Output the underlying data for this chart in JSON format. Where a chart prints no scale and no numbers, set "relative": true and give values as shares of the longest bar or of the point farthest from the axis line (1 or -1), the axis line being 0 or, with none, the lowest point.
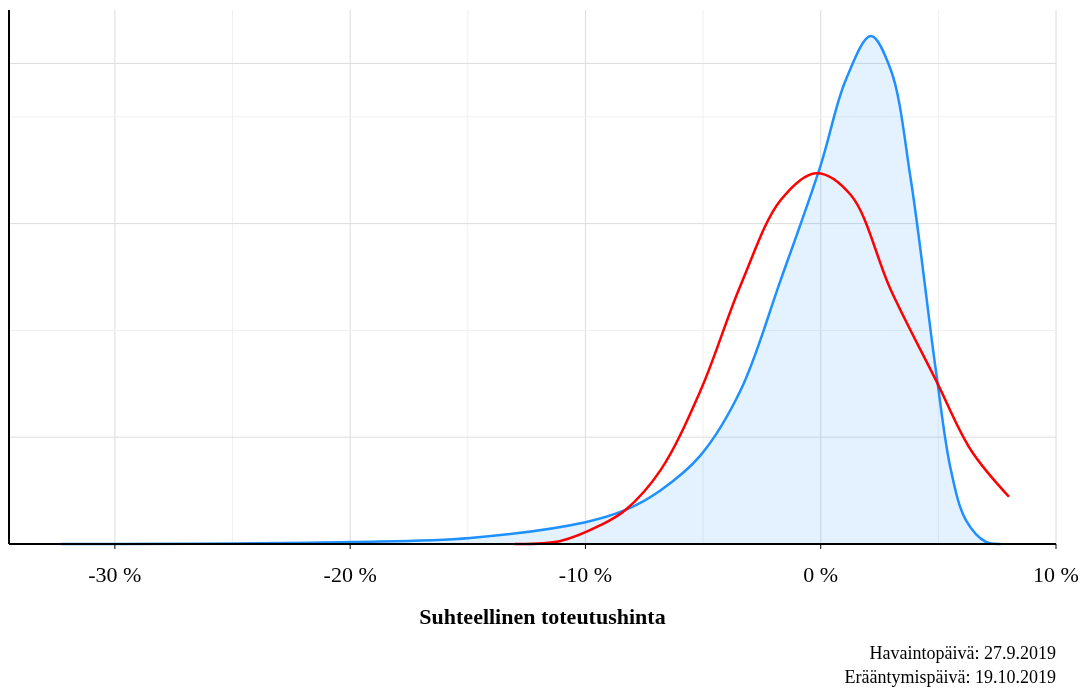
{
  "chart_data": {
    "type": "line",
    "relative": true,
    "xlabel": "Suhteellinen toteutushinta",
    "xlim": [
      -34.5,
      10
    ],
    "xticks": [
      {
        "value": -30,
        "label": "-30 %"
      },
      {
        "value": -20,
        "label": "-20 %"
      },
      {
        "value": -10,
        "label": "-10 %"
      },
      {
        "value": 0,
        "label": "0 %"
      },
      {
        "value": 10,
        "label": "10 %"
      }
    ],
    "tick_labels": "x",
    "grid": true,
    "series": [
      {
        "type": "area",
        "color": "#1e90ff",
        "x": [
          -32.3,
          -20,
          -14.9,
          -10,
          -8.3,
          -6.8,
          -5.1,
          -3.4,
          -1.7,
          0,
          1.06,
          2.13,
          2.98,
          3.83,
          4.89,
          5.53,
          6.17,
          7.02,
          7.66
        ],
        "values": [
          0,
          0.004,
          0.012,
          0.043,
          0.067,
          0.106,
          0.175,
          0.303,
          0.52,
          0.746,
          0.913,
          1,
          0.933,
          0.717,
          0.343,
          0.146,
          0.047,
          0.004,
          0
        ]
      },
      {
        "color": "#ff0000",
        "x": [
          -13,
          -11.06,
          -9.36,
          -8.3,
          -6.8,
          -5.1,
          -3.4,
          -1.7,
          -0.2,
          1.28,
          2.98,
          4.89,
          6.38,
          8
        ],
        "values": [
          0,
          0.006,
          0.037,
          0.067,
          0.146,
          0.303,
          0.51,
          0.677,
          0.73,
          0.687,
          0.5,
          0.323,
          0.185,
          0.093
        ]
      }
    ],
    "annotations": [
      "Havaintopäivä: 27.9.2019",
      "Erääntymispäivä: 19.10.2019"
    ]
  }
}
